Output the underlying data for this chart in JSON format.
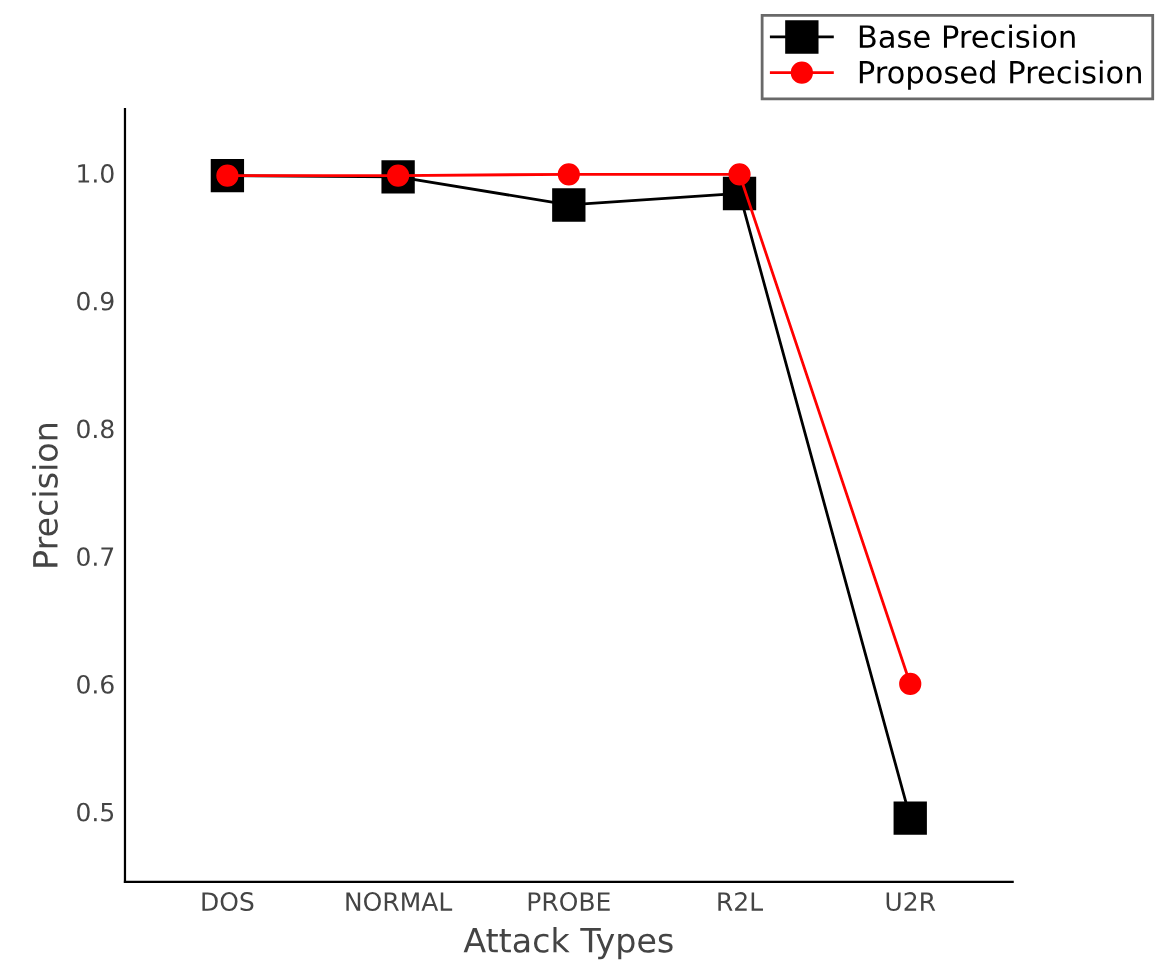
{
  "chart_data": {
    "type": "line",
    "xlabel": "Attack Types",
    "ylabel": "Precision",
    "categories": [
      "DOS",
      "NORMAL",
      "PROBE",
      "R2L",
      "U2R"
    ],
    "series": [
      {
        "name": "Base Precision",
        "color": "#000000",
        "marker": "square",
        "values": [
          0.998,
          0.997,
          0.975,
          0.984,
          0.495
        ]
      },
      {
        "name": "Proposed Precision",
        "color": "#ff0000",
        "marker": "circle",
        "values": [
          0.998,
          0.998,
          0.999,
          0.999,
          0.6
        ]
      }
    ],
    "ylim": [
      0.445,
      1.05
    ],
    "yticks": [
      {
        "value": 0.5,
        "label": "0.5"
      },
      {
        "value": 0.6,
        "label": "0.6"
      },
      {
        "value": 0.7,
        "label": "0.7"
      },
      {
        "value": 0.8,
        "label": "0.8"
      },
      {
        "value": 0.9,
        "label": "0.9"
      },
      {
        "value": 1.0,
        "label": "1.0"
      }
    ],
    "grid": false,
    "legend": "top right"
  }
}
